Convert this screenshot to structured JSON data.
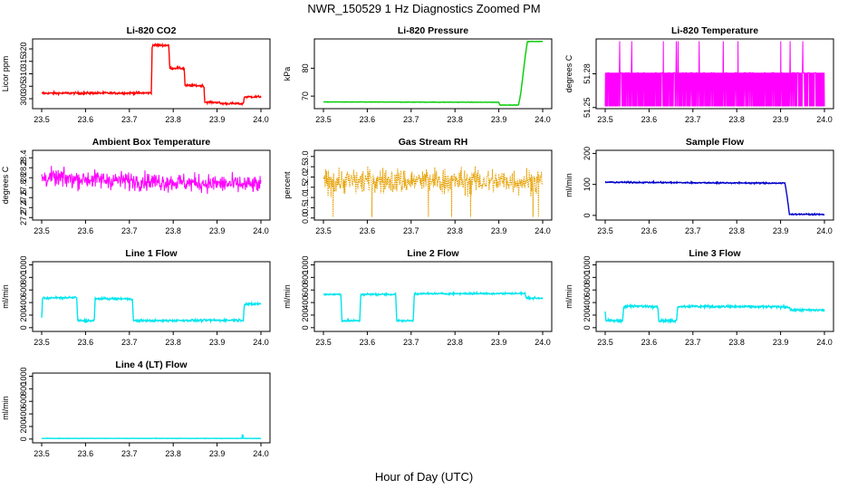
{
  "page": {
    "title": "NWR_150529  1 Hz Diagnostics Zoomed PM",
    "xlabel": "Hour of Day (UTC)"
  },
  "chart_data": [
    {
      "id": "co2",
      "type": "line",
      "title": "Li-820 CO2",
      "ylabel": "Licor ppm",
      "color": "#ff0000",
      "xlim": [
        23.5,
        24.0
      ],
      "ylim": [
        296,
        324
      ],
      "xticks": [
        "23.5",
        "23.6",
        "23.7",
        "23.8",
        "23.9",
        "24.0"
      ],
      "yticks": [
        300,
        305,
        310,
        315,
        320
      ],
      "x": [
        23.5,
        23.75,
        23.752,
        23.79,
        23.792,
        23.825,
        23.827,
        23.87,
        23.872,
        23.905,
        23.907,
        23.96,
        23.962,
        24.0
      ],
      "y": [
        302.2,
        302.3,
        321.5,
        321.4,
        312.3,
        312.2,
        305.3,
        305.2,
        298.6,
        298.5,
        298.1,
        298.0,
        300.7,
        300.8
      ],
      "noise": 0.3
    },
    {
      "id": "pressure",
      "type": "line",
      "title": "Li-820 Pressure",
      "ylabel": "kPa",
      "color": "#00cc00",
      "xlim": [
        23.5,
        24.0
      ],
      "ylim": [
        65.5,
        90.5
      ],
      "xticks": [
        "23.5",
        "23.6",
        "23.7",
        "23.8",
        "23.9",
        "24.0"
      ],
      "yticks": [
        70,
        80
      ],
      "x": [
        23.5,
        23.9,
        23.902,
        23.945,
        23.95,
        23.96,
        23.965,
        23.975,
        24.0
      ],
      "y": [
        67.9,
        67.8,
        66.8,
        66.8,
        71.0,
        84.0,
        89.5,
        89.6,
        89.6
      ],
      "noise": 0.05
    },
    {
      "id": "li_temp",
      "type": "line",
      "title": "Li-820 Temperature",
      "ylabel": "degrees C",
      "color": "#ff00ff",
      "xlim": [
        23.5,
        24.0
      ],
      "ylim": [
        51.249,
        51.311
      ],
      "xticks": [
        "23.5",
        "23.6",
        "23.7",
        "23.8",
        "23.9",
        "24.0"
      ],
      "yticks": [
        51.25,
        51.28
      ],
      "levels": [
        51.251,
        51.281
      ],
      "spike": 51.309
    },
    {
      "id": "box_temp",
      "type": "line",
      "title": "Ambient Box Temperature",
      "ylabel": "degrees C",
      "color": "#ff00ff",
      "xlim": [
        23.5,
        24.0
      ],
      "ylim": [
        27.15,
        28.55
      ],
      "xticks": [
        "23.5",
        "23.6",
        "23.7",
        "23.8",
        "23.9",
        "24.0"
      ],
      "yticks": [
        27.2,
        27.4,
        27.6,
        27.8,
        28.0,
        28.2,
        28.4
      ],
      "mean_start": 28.0,
      "mean_end": 27.85,
      "noise": 0.13
    },
    {
      "id": "rh",
      "type": "scatter",
      "title": "Gas Stream RH",
      "ylabel": "percent",
      "color": "#e6a000",
      "xlim": [
        23.5,
        24.0
      ],
      "ylim": [
        -0.1,
        3.3
      ],
      "xticks": [
        "23.5",
        "23.6",
        "23.7",
        "23.8",
        "23.9",
        "24.0"
      ],
      "yticks": [
        0.0,
        0.5,
        1.0,
        1.5,
        2.0,
        2.5,
        3.0
      ],
      "mean": 1.8,
      "noise": 0.45
    },
    {
      "id": "sample_flow",
      "type": "line",
      "title": "Sample Flow",
      "ylabel": "ml/min",
      "color": "#0000cc",
      "xlim": [
        23.5,
        24.0
      ],
      "ylim": [
        -15,
        210
      ],
      "xticks": [
        "23.5",
        "23.6",
        "23.7",
        "23.8",
        "23.9",
        "24.0"
      ],
      "yticks": [
        0,
        100,
        200
      ],
      "x": [
        23.5,
        23.91,
        23.915,
        23.92,
        24.0
      ],
      "y": [
        107,
        104,
        60,
        4,
        3
      ],
      "noise": 1.5
    },
    {
      "id": "line1",
      "type": "line",
      "title": "Line 1 Flow",
      "ylabel": "ml/min",
      "color": "#00e5ee",
      "xlim": [
        23.5,
        24.0
      ],
      "ylim": [
        -60,
        1050
      ],
      "xticks": [
        "23.5",
        "23.6",
        "23.7",
        "23.8",
        "23.9",
        "24.0"
      ],
      "yticks": [
        0,
        200,
        400,
        600,
        800,
        1000
      ],
      "x": [
        23.5,
        23.502,
        23.58,
        23.582,
        23.62,
        23.622,
        23.707,
        23.709,
        23.96,
        23.962,
        24.0
      ],
      "y": [
        150,
        470,
        480,
        110,
        110,
        460,
        460,
        110,
        120,
        370,
        380
      ],
      "noise": 12
    },
    {
      "id": "line2",
      "type": "line",
      "title": "Line 2 Flow",
      "ylabel": "ml/min",
      "color": "#00e5ee",
      "xlim": [
        23.5,
        24.0
      ],
      "ylim": [
        -60,
        1050
      ],
      "xticks": [
        "23.5",
        "23.6",
        "23.7",
        "23.8",
        "23.9",
        "24.0"
      ],
      "yticks": [
        0,
        200,
        400,
        600,
        800,
        1000
      ],
      "x": [
        23.5,
        23.54,
        23.542,
        23.583,
        23.585,
        23.665,
        23.667,
        23.705,
        23.707,
        23.96,
        23.962,
        24.0
      ],
      "y": [
        530,
        530,
        110,
        110,
        530,
        530,
        110,
        110,
        540,
        545,
        470,
        470
      ],
      "noise": 10
    },
    {
      "id": "line3",
      "type": "line",
      "title": "Line 3 Flow",
      "ylabel": "ml/min",
      "color": "#00e5ee",
      "xlim": [
        23.5,
        24.0
      ],
      "ylim": [
        -60,
        1050
      ],
      "xticks": [
        "23.5",
        "23.6",
        "23.7",
        "23.8",
        "23.9",
        "24.0"
      ],
      "yticks": [
        0,
        200,
        400,
        600,
        800,
        1000
      ],
      "x": [
        23.5,
        23.502,
        23.54,
        23.542,
        23.62,
        23.622,
        23.663,
        23.665,
        23.92,
        23.922,
        24.0
      ],
      "y": [
        250,
        110,
        110,
        340,
        340,
        110,
        110,
        340,
        330,
        280,
        280
      ],
      "noise": 14
    },
    {
      "id": "line4",
      "type": "line",
      "title": "Line 4 (LT) Flow",
      "ylabel": "ml/min",
      "color": "#00e5ee",
      "xlim": [
        23.5,
        24.0
      ],
      "ylim": [
        -60,
        1050
      ],
      "xticks": [
        "23.5",
        "23.6",
        "23.7",
        "23.8",
        "23.9",
        "24.0"
      ],
      "yticks": [
        0,
        200,
        400,
        600,
        800,
        1000
      ],
      "x": [
        23.5,
        23.957,
        23.958,
        23.96,
        24.0
      ],
      "y": [
        10,
        10,
        90,
        10,
        10
      ],
      "noise": 2
    }
  ]
}
